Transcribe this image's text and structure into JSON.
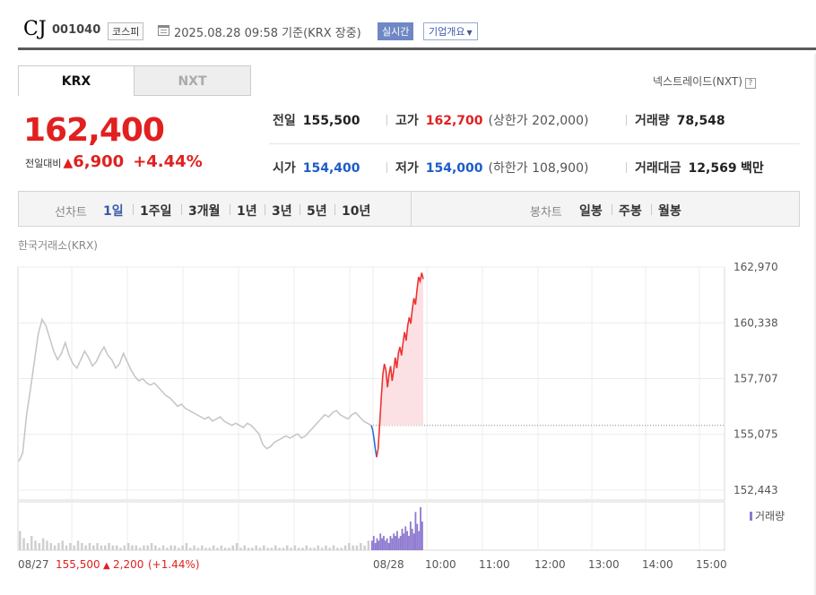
{
  "header": {
    "name": "CJ",
    "code": "001040",
    "market": "코스피",
    "datetime": "2025.08.28 09:58",
    "basis": "기준(KRX 장중)",
    "realtime_label": "실시간",
    "company_label": "기업개요"
  },
  "tabs": {
    "krx": "KRX",
    "nxt": "NXT",
    "nxt_link": "넥스트레이드(NXT)",
    "help": "?"
  },
  "price": {
    "current": "162,400",
    "diff_label": "전일대비",
    "diff": "6,900",
    "rate": "+4.44%"
  },
  "info": {
    "prev_label": "전일",
    "prev": "155,500",
    "high_label": "고가",
    "high": "162,700",
    "upper_label": "(상한가",
    "upper": "202,000)",
    "volume_label": "거래량",
    "volume": "78,548",
    "open_label": "시가",
    "open": "154,400",
    "low_label": "저가",
    "low": "154,000",
    "lower_label": "(하한가",
    "lower": "108,900)",
    "amount_label": "거래대금",
    "amount": "12,569",
    "amount_unit": "백만"
  },
  "period_bar": {
    "line_label": "선차트",
    "line_items": [
      "1일",
      "1주일",
      "3개월",
      "1년",
      "3년",
      "5년",
      "10년"
    ],
    "active": "1일",
    "candle_label": "봉차트",
    "candle_items": [
      "일봉",
      "주봉",
      "월봉"
    ]
  },
  "chart_source": "한국거래소(KRX)",
  "chart_data": {
    "type": "line",
    "y_ticks": [
      "162,970",
      "160,338",
      "157,707",
      "155,075",
      "152,443"
    ],
    "y_tick_values": [
      162970,
      160338,
      157707,
      155075,
      152443
    ],
    "x_ticks": [
      "08/27",
      "08/28",
      "10:00",
      "11:00",
      "12:00",
      "13:00",
      "14:00",
      "15:00"
    ],
    "baseline": 155500,
    "volume_legend": "거래량",
    "prev_day": {
      "date": "08/27",
      "close": "155,500",
      "change": "2,200",
      "rate": "(+1.44%)"
    },
    "prev_series": [
      153800,
      154200,
      156000,
      157200,
      158500,
      159800,
      160500,
      160200,
      159600,
      159000,
      158600,
      158900,
      159400,
      158800,
      158400,
      158200,
      158600,
      159000,
      158700,
      158300,
      158500,
      158900,
      159200,
      158800,
      158600,
      158200,
      158400,
      158900,
      158500,
      158100,
      157800,
      157600,
      157700,
      157500,
      157400,
      157500,
      157300,
      157100,
      156900,
      156800,
      156600,
      156400,
      156500,
      156300,
      156200,
      156100,
      156000,
      155900,
      155800,
      155900,
      155700,
      155800,
      155900,
      155700,
      155600,
      155500,
      155600,
      155500,
      155400,
      155600,
      155500,
      155300,
      155100,
      154600,
      154400,
      154500,
      154700,
      154800,
      154900,
      155000,
      154900,
      155000,
      155100,
      154900,
      155000,
      155200,
      155400,
      155600,
      155800,
      156000,
      155900,
      156100,
      156200,
      156000,
      155900,
      155800,
      156000,
      156100,
      155900,
      155700,
      155600,
      155500
    ],
    "today_down": [
      155500,
      155300,
      154900,
      154400,
      154000
    ],
    "today_up": [
      154000,
      154400,
      155600,
      156800,
      157900,
      158400,
      158100,
      157300,
      157900,
      158300,
      157600,
      158100,
      158700,
      158200,
      158900,
      159200,
      158800,
      159400,
      159900,
      159500,
      160200,
      160600,
      160300,
      161000,
      161500,
      161200,
      161900,
      162500,
      162300,
      162700,
      162400
    ],
    "prev_volume": [
      8,
      5,
      3,
      6,
      4,
      3,
      5,
      4,
      3,
      2,
      3,
      4,
      2,
      3,
      2,
      4,
      3,
      2,
      3,
      2,
      3,
      2,
      2,
      3,
      2,
      2,
      1,
      2,
      3,
      2,
      2,
      1,
      2,
      2,
      3,
      2,
      1,
      2,
      1,
      2,
      2,
      1,
      2,
      3,
      1,
      2,
      1,
      2,
      1,
      1,
      2,
      1,
      2,
      1,
      1,
      2,
      3,
      1,
      2,
      1,
      1,
      2,
      1,
      2,
      1,
      1,
      2,
      1,
      1,
      2,
      1,
      2,
      1,
      1,
      2,
      1,
      1,
      2,
      1,
      2,
      1,
      2,
      1,
      1,
      2,
      3,
      2,
      2,
      3,
      2,
      4,
      3
    ],
    "today_volume": [
      4,
      6,
      3,
      5,
      4,
      7,
      5,
      6,
      4,
      5,
      3,
      6,
      5,
      7,
      6,
      8,
      5,
      6,
      9,
      7,
      10,
      8,
      6,
      12,
      9,
      7,
      16,
      11,
      8,
      18,
      12
    ]
  }
}
